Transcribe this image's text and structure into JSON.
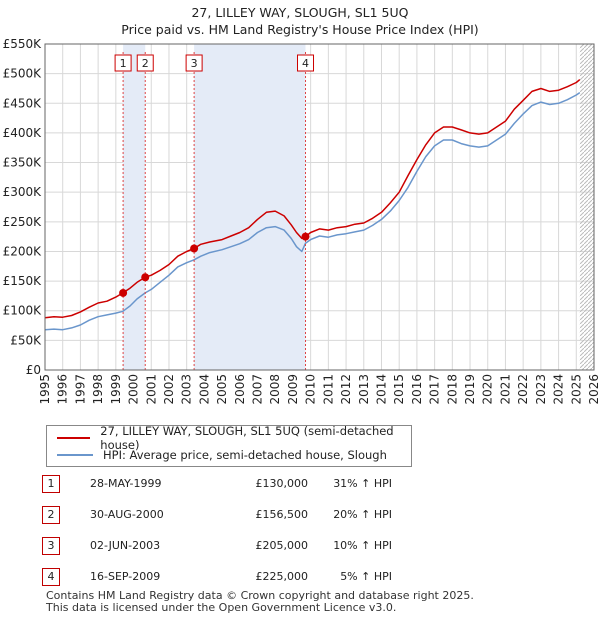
{
  "title": {
    "line1": "27, LILLEY WAY, SLOUGH, SL1 5UQ",
    "line2": "Price paid vs. HM Land Registry's House Price Index (HPI)"
  },
  "chart_data": {
    "type": "line",
    "title": "27, LILLEY WAY, SLOUGH, SL1 5UQ — Price paid vs. HM Land Registry's House Price Index (HPI)",
    "xlabel": "",
    "ylabel": "",
    "xlim": [
      1995,
      2026
    ],
    "ylim": [
      0,
      550000
    ],
    "x_ticks": [
      "1995",
      "1996",
      "1997",
      "1998",
      "1999",
      "2000",
      "2001",
      "2002",
      "2003",
      "2004",
      "2005",
      "2006",
      "2007",
      "2008",
      "2009",
      "2010",
      "2011",
      "2012",
      "2013",
      "2014",
      "2015",
      "2016",
      "2017",
      "2018",
      "2019",
      "2020",
      "2021",
      "2022",
      "2023",
      "2024",
      "2025",
      "2026"
    ],
    "y_ticks": [
      {
        "value": 0,
        "label": "£0"
      },
      {
        "value": 50000,
        "label": "£50K"
      },
      {
        "value": 100000,
        "label": "£100K"
      },
      {
        "value": 150000,
        "label": "£150K"
      },
      {
        "value": 200000,
        "label": "£200K"
      },
      {
        "value": 250000,
        "label": "£250K"
      },
      {
        "value": 300000,
        "label": "£300K"
      },
      {
        "value": 350000,
        "label": "£350K"
      },
      {
        "value": 400000,
        "label": "£400K"
      },
      {
        "value": 450000,
        "label": "£450K"
      },
      {
        "value": 500000,
        "label": "£500K"
      },
      {
        "value": 550000,
        "label": "£550K"
      }
    ],
    "series": [
      {
        "name": "27, LILLEY WAY, SLOUGH, SL1 5UQ (semi-detached house)",
        "color": "#cc0000",
        "points": [
          [
            1995.0,
            88000
          ],
          [
            1995.5,
            90000
          ],
          [
            1996.0,
            89000
          ],
          [
            1996.5,
            92000
          ],
          [
            1997.0,
            98000
          ],
          [
            1997.5,
            106000
          ],
          [
            1998.0,
            113000
          ],
          [
            1998.5,
            116000
          ],
          [
            1999.0,
            123000
          ],
          [
            1999.4,
            130000
          ],
          [
            1999.8,
            138000
          ],
          [
            2000.2,
            148000
          ],
          [
            2000.66,
            156500
          ],
          [
            2001.0,
            160000
          ],
          [
            2001.5,
            168000
          ],
          [
            2002.0,
            178000
          ],
          [
            2002.5,
            192000
          ],
          [
            2003.0,
            200000
          ],
          [
            2003.42,
            205000
          ],
          [
            2003.8,
            212000
          ],
          [
            2004.3,
            216000
          ],
          [
            2005.0,
            220000
          ],
          [
            2005.5,
            226000
          ],
          [
            2006.0,
            232000
          ],
          [
            2006.5,
            240000
          ],
          [
            2007.0,
            254000
          ],
          [
            2007.5,
            266000
          ],
          [
            2008.0,
            268000
          ],
          [
            2008.5,
            260000
          ],
          [
            2008.9,
            245000
          ],
          [
            2009.2,
            232000
          ],
          [
            2009.5,
            222000
          ],
          [
            2009.71,
            225000
          ],
          [
            2010.0,
            232000
          ],
          [
            2010.5,
            238000
          ],
          [
            2011.0,
            236000
          ],
          [
            2011.5,
            240000
          ],
          [
            2012.0,
            242000
          ],
          [
            2012.5,
            246000
          ],
          [
            2013.0,
            248000
          ],
          [
            2013.5,
            256000
          ],
          [
            2014.0,
            266000
          ],
          [
            2014.5,
            282000
          ],
          [
            2015.0,
            300000
          ],
          [
            2015.5,
            328000
          ],
          [
            2016.0,
            355000
          ],
          [
            2016.5,
            380000
          ],
          [
            2017.0,
            400000
          ],
          [
            2017.5,
            410000
          ],
          [
            2018.0,
            410000
          ],
          [
            2018.5,
            405000
          ],
          [
            2019.0,
            400000
          ],
          [
            2019.5,
            398000
          ],
          [
            2020.0,
            400000
          ],
          [
            2020.5,
            410000
          ],
          [
            2021.0,
            420000
          ],
          [
            2021.5,
            440000
          ],
          [
            2022.0,
            455000
          ],
          [
            2022.5,
            470000
          ],
          [
            2023.0,
            475000
          ],
          [
            2023.5,
            470000
          ],
          [
            2024.0,
            472000
          ],
          [
            2024.5,
            478000
          ],
          [
            2025.0,
            485000
          ],
          [
            2025.2,
            490000
          ]
        ]
      },
      {
        "name": "HPI: Average price, semi-detached house, Slough",
        "color": "#6a96cc",
        "points": [
          [
            1995.0,
            68000
          ],
          [
            1995.5,
            69000
          ],
          [
            1996.0,
            68000
          ],
          [
            1996.5,
            71000
          ],
          [
            1997.0,
            76000
          ],
          [
            1997.5,
            84000
          ],
          [
            1998.0,
            90000
          ],
          [
            1998.5,
            93000
          ],
          [
            1999.0,
            96000
          ],
          [
            1999.4,
            99000
          ],
          [
            1999.8,
            108000
          ],
          [
            2000.2,
            120000
          ],
          [
            2000.66,
            130000
          ],
          [
            2001.0,
            136000
          ],
          [
            2001.5,
            148000
          ],
          [
            2002.0,
            160000
          ],
          [
            2002.5,
            174000
          ],
          [
            2003.0,
            181000
          ],
          [
            2003.42,
            186000
          ],
          [
            2003.8,
            192000
          ],
          [
            2004.3,
            198000
          ],
          [
            2005.0,
            203000
          ],
          [
            2005.5,
            208000
          ],
          [
            2006.0,
            213000
          ],
          [
            2006.5,
            220000
          ],
          [
            2007.0,
            232000
          ],
          [
            2007.5,
            240000
          ],
          [
            2008.0,
            242000
          ],
          [
            2008.5,
            236000
          ],
          [
            2008.9,
            222000
          ],
          [
            2009.2,
            208000
          ],
          [
            2009.5,
            200000
          ],
          [
            2009.71,
            214000
          ],
          [
            2010.0,
            220000
          ],
          [
            2010.5,
            226000
          ],
          [
            2011.0,
            224000
          ],
          [
            2011.5,
            228000
          ],
          [
            2012.0,
            230000
          ],
          [
            2012.5,
            233000
          ],
          [
            2013.0,
            236000
          ],
          [
            2013.5,
            244000
          ],
          [
            2014.0,
            254000
          ],
          [
            2014.5,
            268000
          ],
          [
            2015.0,
            286000
          ],
          [
            2015.5,
            308000
          ],
          [
            2016.0,
            335000
          ],
          [
            2016.5,
            360000
          ],
          [
            2017.0,
            378000
          ],
          [
            2017.5,
            388000
          ],
          [
            2018.0,
            388000
          ],
          [
            2018.5,
            382000
          ],
          [
            2019.0,
            378000
          ],
          [
            2019.5,
            376000
          ],
          [
            2020.0,
            378000
          ],
          [
            2020.5,
            388000
          ],
          [
            2021.0,
            398000
          ],
          [
            2021.5,
            416000
          ],
          [
            2022.0,
            432000
          ],
          [
            2022.5,
            446000
          ],
          [
            2023.0,
            452000
          ],
          [
            2023.5,
            448000
          ],
          [
            2024.0,
            450000
          ],
          [
            2024.5,
            456000
          ],
          [
            2025.0,
            464000
          ],
          [
            2025.2,
            468000
          ]
        ]
      }
    ],
    "transactions": [
      {
        "num": "1",
        "x": 1999.41,
        "price": 130000,
        "date": "28-MAY-1999",
        "price_label": "£130,000",
        "hpi": "31% ↑ HPI"
      },
      {
        "num": "2",
        "x": 2000.66,
        "price": 156500,
        "date": "30-AUG-2000",
        "price_label": "£156,500",
        "hpi": "20% ↑ HPI"
      },
      {
        "num": "3",
        "x": 2003.42,
        "price": 205000,
        "date": "02-JUN-2003",
        "price_label": "£205,000",
        "hpi": "10% ↑ HPI"
      },
      {
        "num": "4",
        "x": 2009.71,
        "price": 225000,
        "date": "16-SEP-2009",
        "price_label": "£225,000",
        "hpi": "5% ↑ HPI"
      }
    ],
    "shaded_ranges": [
      [
        1999.41,
        2000.66
      ],
      [
        2003.42,
        2009.71
      ]
    ],
    "forecast_start": 2025.2,
    "colors": {
      "price_line": "#cc0000",
      "hpi_line": "#6a96cc",
      "shade": "#e4ebf7",
      "hatch": "#bbbbbb",
      "grid": "#d8d8d8",
      "marker_line": "#dd4444"
    }
  },
  "legend": {
    "price_label": "27, LILLEY WAY, SLOUGH, SL1 5UQ (semi-detached house)",
    "hpi_label": "HPI: Average price, semi-detached house, Slough"
  },
  "footer": {
    "line1": "Contains HM Land Registry data © Crown copyright and database right 2025.",
    "line2": "This data is licensed under the Open Government Licence v3.0."
  }
}
